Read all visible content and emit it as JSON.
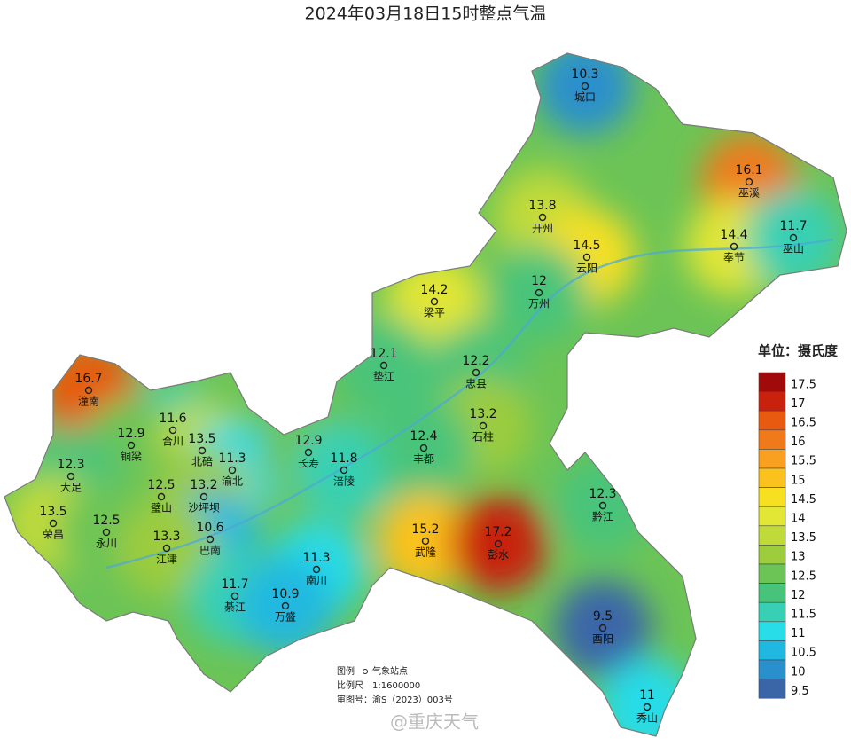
{
  "title": "2024年03月18日15时整点气温",
  "stations": [
    {
      "name": "城口",
      "value": 10.3
    },
    {
      "name": "巫溪",
      "value": 16.1
    },
    {
      "name": "开州",
      "value": 13.8
    },
    {
      "name": "云阳",
      "value": 14.5
    },
    {
      "name": "奉节",
      "value": 14.4
    },
    {
      "name": "巫山",
      "value": 11.7
    },
    {
      "name": "梁平",
      "value": 14.2
    },
    {
      "name": "万州",
      "value": 12
    },
    {
      "name": "垫江",
      "value": 12.1
    },
    {
      "name": "忠县",
      "value": 12.2
    },
    {
      "name": "潼南",
      "value": 16.7
    },
    {
      "name": "合川",
      "value": 11.6
    },
    {
      "name": "铜梁",
      "value": 12.9
    },
    {
      "name": "北碚",
      "value": 13.5
    },
    {
      "name": "渝北",
      "value": 11.3
    },
    {
      "name": "长寿",
      "value": 12.9
    },
    {
      "name": "涪陵",
      "value": 11.8
    },
    {
      "name": "石柱",
      "value": 13.2
    },
    {
      "name": "丰都",
      "value": 12.4
    },
    {
      "name": "大足",
      "value": 12.3
    },
    {
      "name": "璧山",
      "value": 12.5
    },
    {
      "name": "沙坪坝",
      "value": 13.2
    },
    {
      "name": "黔江",
      "value": 12.3
    },
    {
      "name": "荣昌",
      "value": 13.5
    },
    {
      "name": "永川",
      "value": 12.5
    },
    {
      "name": "巴南",
      "value": 10.6
    },
    {
      "name": "江津",
      "value": 13.3
    },
    {
      "name": "武隆",
      "value": 15.2
    },
    {
      "name": "彭水",
      "value": 17.2
    },
    {
      "name": "南川",
      "value": 11.3
    },
    {
      "name": "綦江",
      "value": 11.7
    },
    {
      "name": "万盛",
      "value": 10.9
    },
    {
      "name": "酉阳",
      "value": 9.5
    },
    {
      "name": "秀山",
      "value": 11
    }
  ],
  "legend": {
    "unit": "单位：摄氏度",
    "levels": [
      {
        "value": 17.5,
        "color": "#a00a0a"
      },
      {
        "value": 17,
        "color": "#c8220e"
      },
      {
        "value": 16.5,
        "color": "#e85a10"
      },
      {
        "value": 16,
        "color": "#f07a1a"
      },
      {
        "value": 15.5,
        "color": "#f9a020"
      },
      {
        "value": 15,
        "color": "#fbc21e"
      },
      {
        "value": 14.5,
        "color": "#f7e020"
      },
      {
        "value": 14,
        "color": "#e2e634"
      },
      {
        "value": 13.5,
        "color": "#c0da3a"
      },
      {
        "value": 13,
        "color": "#9dcc3c"
      },
      {
        "value": 12.5,
        "color": "#6cc456"
      },
      {
        "value": 12,
        "color": "#48c47a"
      },
      {
        "value": 11.5,
        "color": "#38d0b4"
      },
      {
        "value": 11,
        "color": "#28dce8"
      },
      {
        "value": 10.5,
        "color": "#20b8e0"
      },
      {
        "value": 10,
        "color": "#2a90cc"
      },
      {
        "value": 9.5,
        "color": "#3a66a8"
      }
    ]
  },
  "notes": {
    "legend_label": "图例",
    "station_label": "气象站点",
    "scale_label": "比例尺",
    "scale": "1:1600000",
    "approval": "审图号：渝S（2023）003号"
  },
  "watermark": "@重庆天气"
}
